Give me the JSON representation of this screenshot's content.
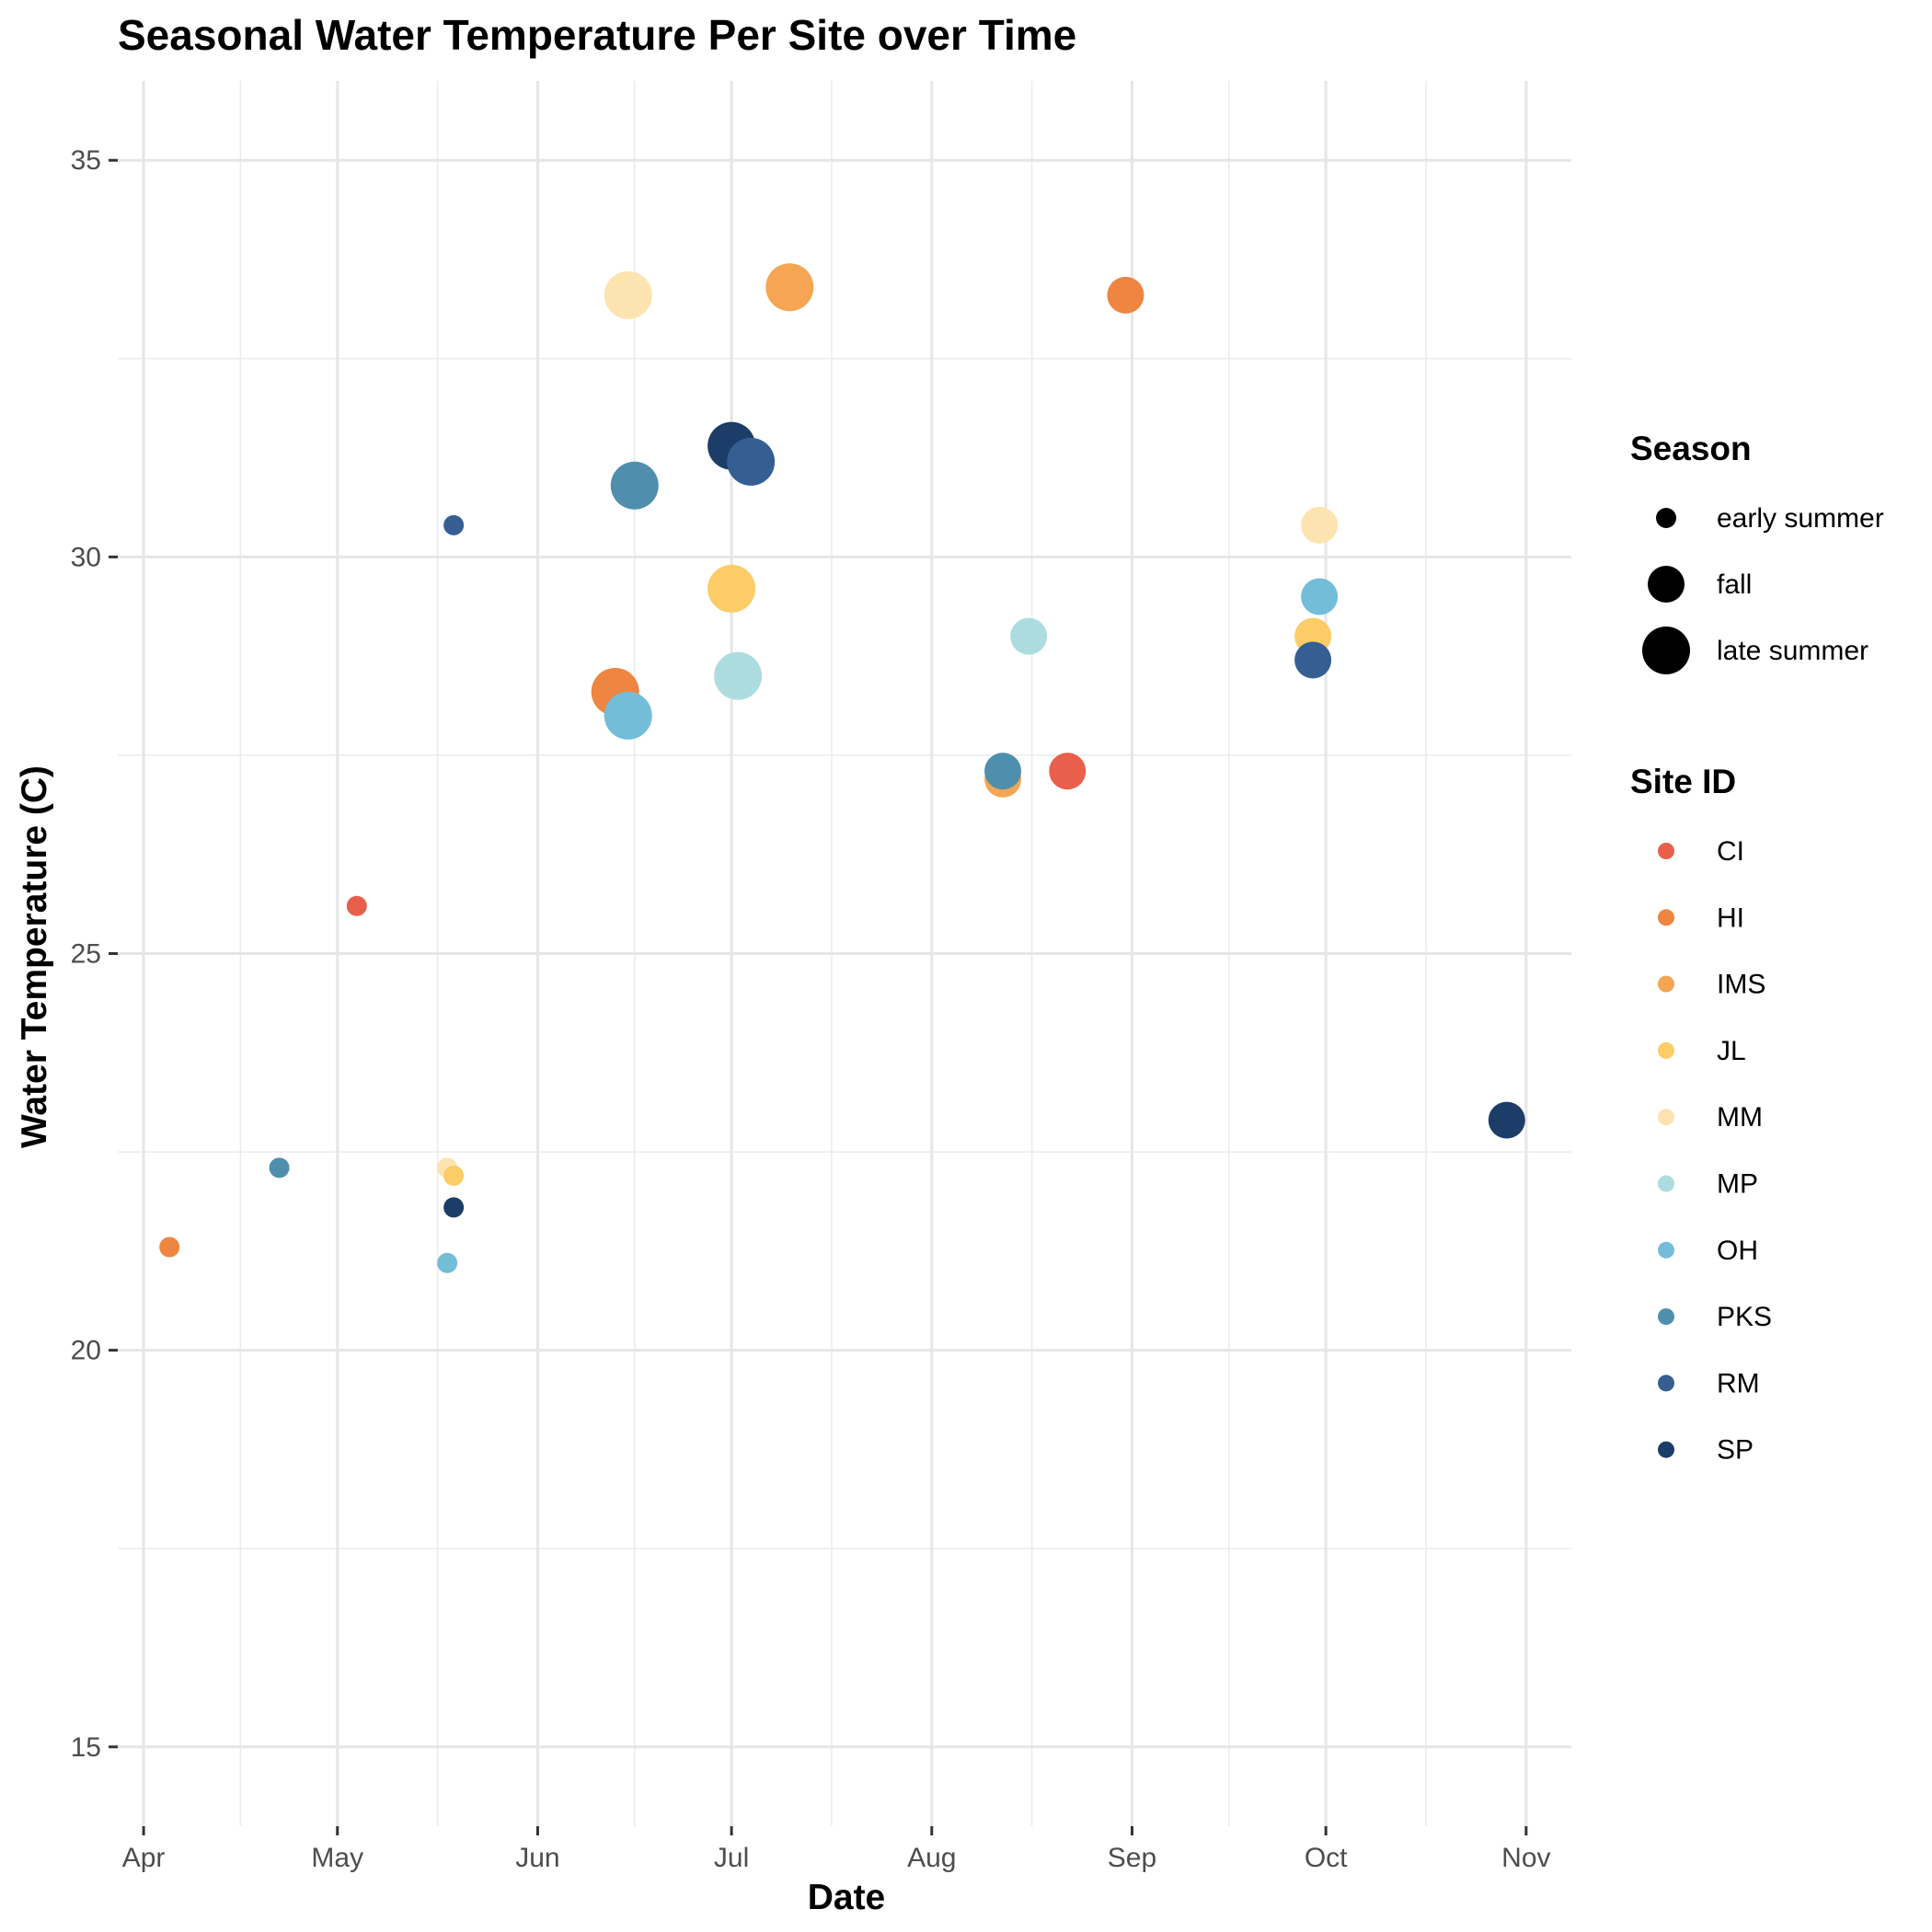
{
  "chart_data": {
    "type": "scatter",
    "title": "Seasonal Water Temperature Per Site over Time",
    "xlabel": "Date",
    "ylabel": "Water Temperature (C)",
    "x_ticks": [
      {
        "date": "2021-04-01",
        "label": "Apr"
      },
      {
        "date": "2021-05-01",
        "label": "May"
      },
      {
        "date": "2021-06-01",
        "label": "Jun"
      },
      {
        "date": "2021-07-01",
        "label": "Jul"
      },
      {
        "date": "2021-08-01",
        "label": "Aug"
      },
      {
        "date": "2021-09-01",
        "label": "Sep"
      },
      {
        "date": "2021-10-01",
        "label": "Oct"
      },
      {
        "date": "2021-11-01",
        "label": "Nov"
      }
    ],
    "xlim": [
      "2021-03-28",
      "2021-11-08"
    ],
    "y_ticks": [
      15,
      20,
      25,
      30,
      35
    ],
    "ylim": [
      14,
      36
    ],
    "grid": true,
    "legend_position": "right",
    "season_legend": {
      "title": "Season",
      "items": [
        {
          "label": "early summer",
          "key": "early summer"
        },
        {
          "label": "fall",
          "key": "fall"
        },
        {
          "label": "late summer",
          "key": "late summer"
        }
      ]
    },
    "site_legend": {
      "title": "Site ID",
      "items": [
        {
          "label": "CI",
          "color": "#E8604C"
        },
        {
          "label": "HI",
          "color": "#EE8540"
        },
        {
          "label": "IMS",
          "color": "#F5A553"
        },
        {
          "label": "JL",
          "color": "#FCCC66"
        },
        {
          "label": "MM",
          "color": "#FDE3B0"
        },
        {
          "label": "MP",
          "color": "#ADDCDF"
        },
        {
          "label": "OH",
          "color": "#74BDD8"
        },
        {
          "label": "PKS",
          "color": "#4F8FAD"
        },
        {
          "label": "RM",
          "color": "#355F93"
        },
        {
          "label": "SP",
          "color": "#1C3D68"
        }
      ]
    },
    "points": [
      {
        "site": "HI",
        "season": "early summer",
        "date": "2021-04-05",
        "temp": 21.3
      },
      {
        "site": "PKS",
        "season": "early summer",
        "date": "2021-04-22",
        "temp": 22.3
      },
      {
        "site": "CI",
        "season": "early summer",
        "date": "2021-05-04",
        "temp": 25.6
      },
      {
        "site": "MM",
        "season": "early summer",
        "date": "2021-05-18",
        "temp": 22.3
      },
      {
        "site": "JL",
        "season": "early summer",
        "date": "2021-05-19",
        "temp": 22.2
      },
      {
        "site": "SP",
        "season": "early summer",
        "date": "2021-05-19",
        "temp": 21.8
      },
      {
        "site": "OH",
        "season": "early summer",
        "date": "2021-05-18",
        "temp": 21.1
      },
      {
        "site": "RM",
        "season": "early summer",
        "date": "2021-05-19",
        "temp": 30.4
      },
      {
        "site": "MM",
        "season": "late summer",
        "date": "2021-06-15",
        "temp": 33.3
      },
      {
        "site": "HI",
        "season": "late summer",
        "date": "2021-06-13",
        "temp": 28.3
      },
      {
        "site": "OH",
        "season": "late summer",
        "date": "2021-06-15",
        "temp": 28.0
      },
      {
        "site": "PKS",
        "season": "late summer",
        "date": "2021-06-16",
        "temp": 30.9
      },
      {
        "site": "SP",
        "season": "late summer",
        "date": "2021-07-01",
        "temp": 31.4
      },
      {
        "site": "RM",
        "season": "late summer",
        "date": "2021-07-04",
        "temp": 31.2
      },
      {
        "site": "JL",
        "season": "late summer",
        "date": "2021-07-01",
        "temp": 29.6
      },
      {
        "site": "MP",
        "season": "late summer",
        "date": "2021-07-02",
        "temp": 28.5
      },
      {
        "site": "IMS",
        "season": "late summer",
        "date": "2021-07-10",
        "temp": 33.4
      },
      {
        "site": "IMS",
        "season": "fall",
        "date": "2021-08-12",
        "temp": 27.2
      },
      {
        "site": "PKS",
        "season": "fall",
        "date": "2021-08-12",
        "temp": 27.3
      },
      {
        "site": "MP",
        "season": "fall",
        "date": "2021-08-16",
        "temp": 29.0
      },
      {
        "site": "CI",
        "season": "fall",
        "date": "2021-08-22",
        "temp": 27.3
      },
      {
        "site": "HI",
        "season": "fall",
        "date": "2021-08-31",
        "temp": 33.3
      },
      {
        "site": "MM",
        "season": "fall",
        "date": "2021-09-30",
        "temp": 30.4
      },
      {
        "site": "OH",
        "season": "fall",
        "date": "2021-09-30",
        "temp": 29.5
      },
      {
        "site": "JL",
        "season": "fall",
        "date": "2021-09-29",
        "temp": 29.0
      },
      {
        "site": "RM",
        "season": "fall",
        "date": "2021-09-29",
        "temp": 28.7
      },
      {
        "site": "SP",
        "season": "fall",
        "date": "2021-10-29",
        "temp": 22.9
      }
    ]
  }
}
